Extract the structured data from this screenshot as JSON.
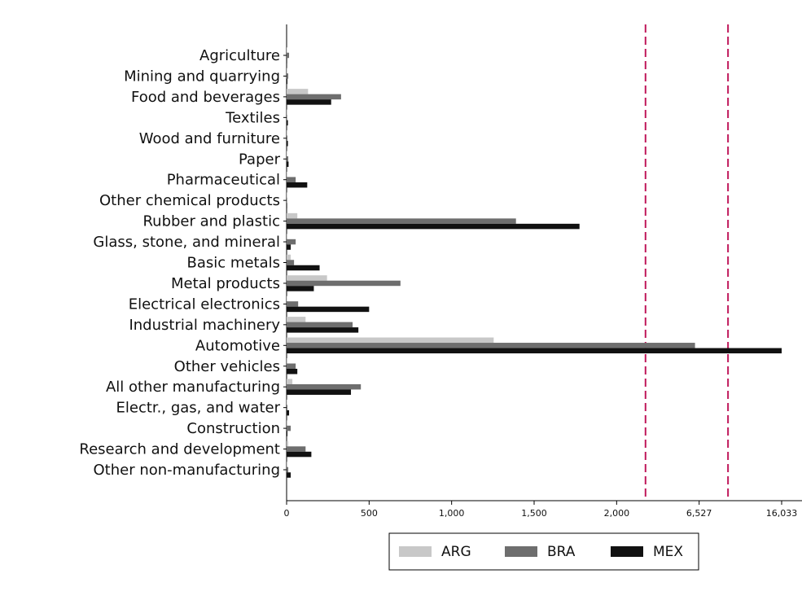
{
  "chart_data": {
    "type": "barh",
    "categories": [
      "Agriculture",
      "Mining and quarrying",
      "Food and beverages",
      "Textiles",
      "Wood and furniture",
      "Paper",
      "Pharmaceutical",
      "Other chemical products",
      "Rubber and plastic",
      "Glass, stone, and mineral",
      "Basic metals",
      "Metal products",
      "Electrical electronics",
      "Industrial machinery",
      "Automotive",
      "Other vehicles",
      "All other manufacturing",
      "Electr., gas, and water",
      "Construction",
      "Research and development",
      "Other non-manufacturing"
    ],
    "series": [
      {
        "name": "ARG",
        "color": "#c8c8c8",
        "values": [
          3,
          2,
          130,
          2,
          2,
          3,
          2,
          2,
          65,
          5,
          25,
          245,
          3,
          115,
          1255,
          5,
          35,
          3,
          5,
          10,
          5
        ]
      },
      {
        "name": "BRA",
        "color": "#6e6e6e",
        "values": [
          15,
          10,
          330,
          3,
          5,
          10,
          55,
          3,
          1390,
          55,
          45,
          690,
          70,
          400,
          6300,
          55,
          450,
          5,
          25,
          115,
          10
        ]
      },
      {
        "name": "MEX",
        "color": "#111111",
        "values": [
          3,
          5,
          270,
          8,
          8,
          12,
          125,
          3,
          1775,
          25,
          200,
          165,
          500,
          435,
          16033,
          65,
          390,
          15,
          5,
          150,
          25
        ]
      }
    ],
    "xlim": [
      0,
      16033
    ],
    "xticks": [
      0,
      500,
      {
        "value": 1000,
        "label": "1,000"
      },
      {
        "value": 1500,
        "label": "1,500"
      },
      {
        "value": 2000,
        "label": "2,000"
      },
      {
        "value": 6527,
        "label": "6,527"
      },
      {
        "value": 16033,
        "label": "16,033"
      }
    ],
    "axis_breaks": [
      2000,
      6527
    ],
    "break_color": "#c0185a",
    "legend": "bottom"
  }
}
